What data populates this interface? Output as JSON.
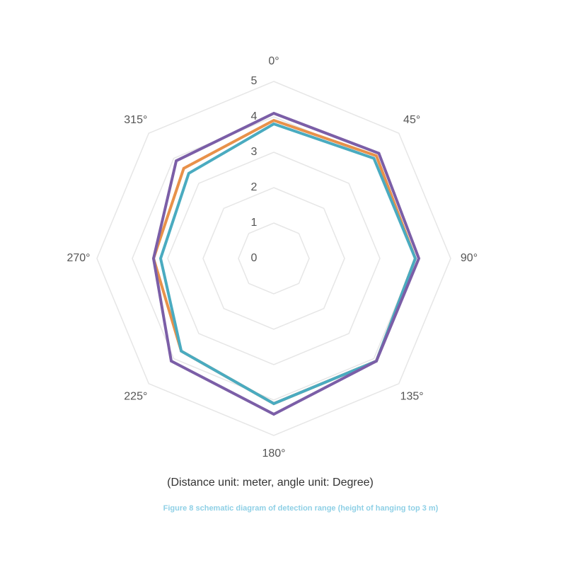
{
  "chart_data": {
    "type": "radar",
    "categories": [
      "0°",
      "45°",
      "90°",
      "135°",
      "180°",
      "225°",
      "270°",
      "315°"
    ],
    "rlim": [
      0,
      5
    ],
    "rticks": [
      0,
      1,
      2,
      3,
      4,
      5
    ],
    "grid": true,
    "series": [
      {
        "color": "#e8914a",
        "values": [
          3.9,
          4.1,
          4.0,
          4.1,
          4.1,
          3.7,
          3.4,
          3.6
        ]
      },
      {
        "color": "#4aabc0",
        "values": [
          3.8,
          4.0,
          4.0,
          4.1,
          4.1,
          3.7,
          3.2,
          3.4
        ]
      },
      {
        "color": "#7b5ea7",
        "values": [
          4.1,
          4.2,
          4.1,
          4.1,
          4.4,
          4.1,
          3.4,
          3.9
        ]
      }
    ],
    "note": "(Distance unit: meter, angle unit: Degree)",
    "caption": "Figure 8 schematic diagram of detection range (height of hanging top 3 m)"
  }
}
